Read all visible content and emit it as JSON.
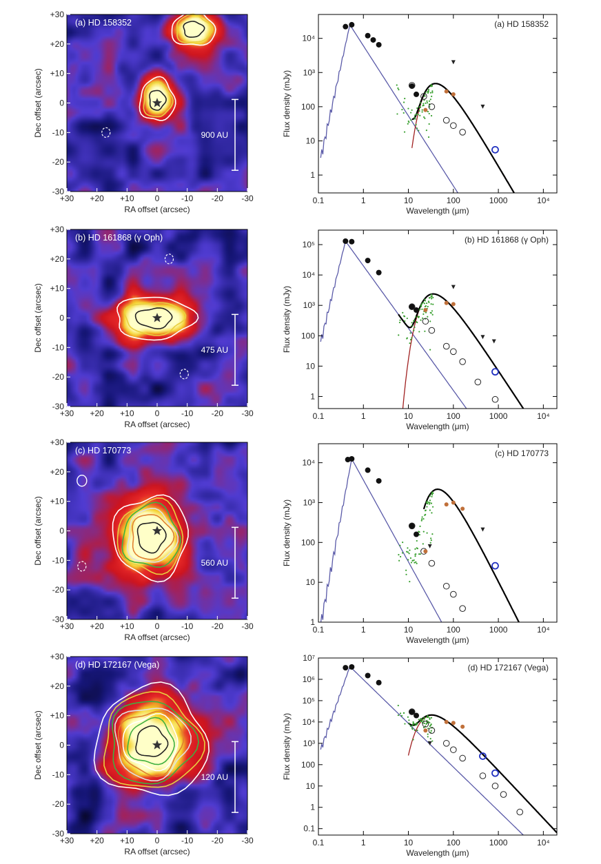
{
  "chart_data": [
    {
      "type": "heatmap",
      "panel": "map-a",
      "label": "(a) HD 158352",
      "xlabel": "RA offset (arcsec)",
      "ylabel": "Dec offset (arcsec)",
      "xlim": [
        30,
        -30
      ],
      "ylim": [
        -30,
        30
      ],
      "xticks": [
        "+30",
        "+20",
        "+10",
        "0",
        "-10",
        "-20",
        "-30"
      ],
      "yticks": [
        "+30",
        "+20",
        "+10",
        "0",
        "-10",
        "-20",
        "-30"
      ],
      "scalebar": "900 AU",
      "blobs": [
        {
          "ra": 0,
          "dec": 1,
          "sx": 4,
          "sy": 5,
          "amp": 1.0
        },
        {
          "ra": -12,
          "dec": 25,
          "sx": 5,
          "sy": 4,
          "amp": 1.0
        }
      ],
      "contour_levels": [
        0.35,
        0.5,
        0.8
      ],
      "dashed": [
        {
          "ra": 17,
          "dec": -10
        }
      ]
    },
    {
      "type": "line",
      "panel": "sed-a",
      "label": "(a) HD 158352",
      "xlabel": "Wavelength (μm)",
      "ylabel": "Flux density (mJy)",
      "xscale": "log",
      "yscale": "log",
      "xlim": [
        0.1,
        20000
      ],
      "ylim": [
        0.3,
        50000
      ],
      "xticks": [
        {
          "v": 0.1,
          "t": "0.1"
        },
        {
          "v": 1,
          "t": "1"
        },
        {
          "v": 10,
          "t": "10"
        },
        {
          "v": 100,
          "t": "100"
        },
        {
          "v": 1000,
          "t": "1000"
        },
        {
          "v": 10000,
          "t": "10⁴"
        }
      ],
      "yticks": [
        {
          "v": 1,
          "t": "1"
        },
        {
          "v": 10,
          "t": "10"
        },
        {
          "v": 100,
          "t": "100"
        },
        {
          "v": 1000,
          "t": "10³"
        },
        {
          "v": 10000,
          "t": "10⁴"
        }
      ],
      "stellar_peak": [
        0.5,
        25000
      ],
      "disk": {
        "peak": 90,
        "value": 230,
        "cutoff": 12
      },
      "observed": [
        [
          0.4,
          22000
        ],
        [
          0.55,
          25000
        ],
        [
          1.25,
          12000
        ],
        [
          1.65,
          9000
        ],
        [
          2.2,
          6500
        ],
        [
          12,
          400
        ],
        [
          15,
          230
        ]
      ],
      "model_points": [
        [
          12,
          420
        ],
        [
          22,
          200
        ],
        [
          33,
          100
        ],
        [
          70,
          40
        ],
        [
          100,
          28
        ],
        [
          160,
          18
        ]
      ],
      "upper_limits": [
        [
          100,
          2000
        ],
        [
          450,
          100
        ]
      ],
      "submm": [
        [
          850,
          5.5
        ]
      ],
      "ir_points": [
        [
          70,
          280
        ],
        [
          100,
          230
        ],
        [
          24,
          80
        ]
      ]
    },
    {
      "type": "heatmap",
      "panel": "map-b",
      "label": "(b) HD 161868 (γ Oph)",
      "xlabel": "RA offset (arcsec)",
      "ylabel": "Dec offset (arcsec)",
      "xlim": [
        30,
        -30
      ],
      "ylim": [
        -30,
        30
      ],
      "xticks": [
        "+30",
        "+20",
        "+10",
        "0",
        "-10",
        "-20",
        "-30"
      ],
      "yticks": [
        "+30",
        "+20",
        "+10",
        "0",
        "-10",
        "-20",
        "-30"
      ],
      "scalebar": "475 AU",
      "blobs": [
        {
          "ra": 1,
          "dec": 0,
          "sx": 9,
          "sy": 5,
          "amp": 1.0
        }
      ],
      "contour_levels": [
        0.35,
        0.55,
        0.8
      ],
      "dashed": [
        {
          "ra": -4,
          "dec": 20
        },
        {
          "ra": -9,
          "dec": -19
        }
      ]
    },
    {
      "type": "line",
      "panel": "sed-b",
      "label": "(b) HD 161868 (γ Oph)",
      "xlabel": "Wavelength (μm)",
      "ylabel": "Flux density (mJy)",
      "xscale": "log",
      "yscale": "log",
      "xlim": [
        0.1,
        20000
      ],
      "ylim": [
        0.4,
        300000
      ],
      "xticks": [
        {
          "v": 0.1,
          "t": "0.1"
        },
        {
          "v": 1,
          "t": "1"
        },
        {
          "v": 10,
          "t": "10"
        },
        {
          "v": 100,
          "t": "100"
        },
        {
          "v": 1000,
          "t": "1000"
        },
        {
          "v": 10000,
          "t": "10⁴"
        }
      ],
      "yticks": [
        {
          "v": 1,
          "t": "1"
        },
        {
          "v": 10,
          "t": "10"
        },
        {
          "v": 100,
          "t": "100"
        },
        {
          "v": 1000,
          "t": "10³"
        },
        {
          "v": 10000,
          "t": "10⁴"
        },
        {
          "v": 100000,
          "t": "10⁵"
        }
      ],
      "stellar_peak": [
        0.4,
        130000
      ],
      "disk": {
        "peak": 80,
        "value": 1150,
        "cutoff": 6
      },
      "observed": [
        [
          0.4,
          130000
        ],
        [
          0.55,
          125000
        ],
        [
          1.25,
          30000
        ],
        [
          2.2,
          12000
        ],
        [
          12,
          900
        ],
        [
          15,
          700
        ]
      ],
      "model_points": [
        [
          12,
          900
        ],
        [
          24,
          300
        ],
        [
          33,
          150
        ],
        [
          70,
          45
        ],
        [
          100,
          30
        ],
        [
          160,
          14
        ],
        [
          350,
          3
        ],
        [
          850,
          0.8
        ]
      ],
      "upper_limits": [
        [
          100,
          4000
        ],
        [
          450,
          90
        ],
        [
          800,
          65
        ]
      ],
      "submm": [
        [
          850,
          6.5
        ]
      ],
      "ir_points": [
        [
          70,
          1200
        ],
        [
          100,
          1100
        ],
        [
          24,
          700
        ]
      ]
    },
    {
      "type": "heatmap",
      "panel": "map-c",
      "label": "(c) HD 170773",
      "xlabel": "RA offset (arcsec)",
      "ylabel": "Dec offset (arcsec)",
      "xlim": [
        30,
        -30
      ],
      "ylim": [
        -30,
        30
      ],
      "xticks": [
        "+30",
        "+20",
        "+10",
        "0",
        "-10",
        "-20",
        "-30"
      ],
      "yticks": [
        "+30",
        "+20",
        "+10",
        "0",
        "-10",
        "-20",
        "-30"
      ],
      "scalebar": "560 AU",
      "blobs": [
        {
          "ra": 2,
          "dec": -2,
          "sx": 8,
          "sy": 9,
          "amp": 1.0
        }
      ],
      "contour_levels": [
        0.3,
        0.4,
        0.5,
        0.6,
        0.7,
        0.85
      ],
      "dashed": [
        {
          "ra": 25,
          "dec": -12
        }
      ],
      "solid_extra": [
        {
          "ra": 25,
          "dec": 17
        }
      ]
    },
    {
      "type": "line",
      "panel": "sed-c",
      "label": "(c) HD 170773",
      "xlabel": "Wavelength (μm)",
      "ylabel": "Flux density (mJy)",
      "xscale": "log",
      "yscale": "log",
      "xlim": [
        0.1,
        20000
      ],
      "ylim": [
        1,
        30000
      ],
      "xticks": [
        {
          "v": 0.1,
          "t": "0.1"
        },
        {
          "v": 1,
          "t": "1"
        },
        {
          "v": 10,
          "t": "10"
        },
        {
          "v": 100,
          "t": "100"
        },
        {
          "v": 1000,
          "t": "1000"
        },
        {
          "v": 10000,
          "t": "10⁴"
        }
      ],
      "yticks": [
        {
          "v": 1,
          "t": "1"
        },
        {
          "v": 10,
          "t": "10"
        },
        {
          "v": 100,
          "t": "100"
        },
        {
          "v": 1000,
          "t": "10³"
        },
        {
          "v": 10000,
          "t": "10⁴"
        }
      ],
      "stellar_peak": [
        0.55,
        12500
      ],
      "disk": {
        "peak": 100,
        "value": 1050,
        "cutoff": 22
      },
      "observed": [
        [
          0.45,
          12000
        ],
        [
          0.55,
          12500
        ],
        [
          1.25,
          6500
        ],
        [
          2.2,
          3500
        ],
        [
          12,
          260
        ],
        [
          15,
          160
        ]
      ],
      "model_points": [
        [
          12,
          260
        ],
        [
          22,
          60
        ],
        [
          33,
          30
        ],
        [
          70,
          8
        ],
        [
          100,
          5
        ],
        [
          160,
          2.2
        ]
      ],
      "upper_limits": [
        [
          30,
          80
        ],
        [
          450,
          210
        ]
      ],
      "submm": [
        [
          850,
          26
        ]
      ],
      "ir_points": [
        [
          70,
          900
        ],
        [
          100,
          1000
        ],
        [
          160,
          700
        ],
        [
          24,
          60
        ]
      ]
    },
    {
      "type": "heatmap",
      "panel": "map-d",
      "label": "(d) HD 172167 (Vega)",
      "xlabel": "RA offset (arcsec)",
      "ylabel": "Dec offset (arcsec)",
      "xlim": [
        30,
        -30
      ],
      "ylim": [
        -30,
        30
      ],
      "xticks": [
        "+30",
        "+20",
        "+10",
        "0",
        "-10",
        "-20",
        "-30"
      ],
      "yticks": [
        "+30",
        "+20",
        "+10",
        "0",
        "-10",
        "-20",
        "-30"
      ],
      "scalebar": "120 AU",
      "blobs": [
        {
          "ra": 2,
          "dec": 1,
          "sx": 9,
          "sy": 9,
          "amp": 1.0
        }
      ],
      "contour_levels": [
        0.12,
        0.2,
        0.3,
        0.4,
        0.5,
        0.6,
        0.7,
        0.85
      ],
      "dashed": []
    },
    {
      "type": "line",
      "panel": "sed-d",
      "label": "(d) HD 172167 (Vega)",
      "xlabel": "Wavelength (μm)",
      "ylabel": "Flux density (mJy)",
      "xscale": "log",
      "yscale": "log",
      "xlim": [
        0.1,
        20000
      ],
      "ylim": [
        0.05,
        10000000
      ],
      "xticks": [
        {
          "v": 0.1,
          "t": "0.1"
        },
        {
          "v": 1,
          "t": "1"
        },
        {
          "v": 10,
          "t": "10"
        },
        {
          "v": 100,
          "t": "100"
        },
        {
          "v": 1000,
          "t": "1000"
        },
        {
          "v": 10000,
          "t": "10⁴"
        }
      ],
      "yticks": [
        {
          "v": 0.1,
          "t": "0.1"
        },
        {
          "v": 1,
          "t": "1"
        },
        {
          "v": 10,
          "t": "10"
        },
        {
          "v": 100,
          "t": "100"
        },
        {
          "v": 1000,
          "t": "10³"
        },
        {
          "v": 10000,
          "t": "10⁴"
        },
        {
          "v": 100000,
          "t": "10⁵"
        },
        {
          "v": 1000000,
          "t": "10⁶"
        },
        {
          "v": 10000000,
          "t": "10⁷"
        }
      ],
      "stellar_peak": [
        0.5,
        4000000
      ],
      "disk": {
        "peak": 75,
        "value": 10000,
        "cutoff": 10
      },
      "observed": [
        [
          0.4,
          3500000
        ],
        [
          0.55,
          3800000
        ],
        [
          1.25,
          1500000
        ],
        [
          2.2,
          700000
        ],
        [
          12,
          30000
        ],
        [
          15,
          20000
        ]
      ],
      "model_points": [
        [
          12,
          30000
        ],
        [
          24,
          8000
        ],
        [
          33,
          4000
        ],
        [
          70,
          1000
        ],
        [
          100,
          500
        ],
        [
          160,
          200
        ],
        [
          450,
          30
        ],
        [
          850,
          10
        ],
        [
          1300,
          4
        ],
        [
          3000,
          0.6
        ]
      ],
      "upper_limits": [
        [
          30,
          1000
        ]
      ],
      "submm": [
        [
          450,
          250
        ],
        [
          850,
          40
        ]
      ],
      "ir_points": [
        [
          70,
          10000
        ],
        [
          100,
          9000
        ],
        [
          160,
          6000
        ],
        [
          24,
          4000
        ]
      ]
    }
  ]
}
